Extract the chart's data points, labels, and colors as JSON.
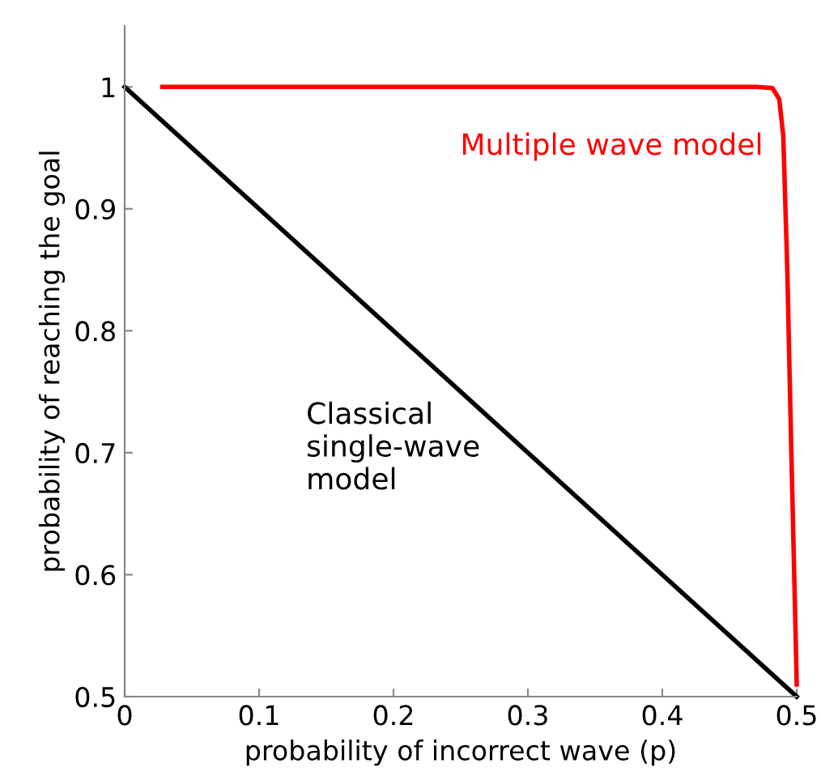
{
  "chart_data": {
    "type": "line",
    "xlabel": "probability of incorrect wave (p)",
    "ylabel": "probability of reaching the goal",
    "series": [
      {
        "name": "Multiple wave model",
        "color": "#ff0000",
        "x": [
          0.028,
          0.47,
          0.482,
          0.487,
          0.49,
          0.493,
          0.496,
          0.499,
          0.5
        ],
        "values": [
          1,
          1,
          0.999,
          0.99,
          0.96,
          0.85,
          0.7,
          0.56,
          0.51
        ]
      },
      {
        "name": "Classical\nsingle-wave\nmodel",
        "color": "#000000",
        "x": [
          0,
          0.5
        ],
        "values": [
          1,
          0.5
        ]
      }
    ],
    "xlim": [
      0,
      0.5
    ],
    "ylim": [
      0.5,
      1.05
    ],
    "xticks": [
      0,
      0.1,
      0.2,
      0.3,
      0.4,
      0.5
    ],
    "yticks": [
      0.5,
      0.6,
      0.7,
      0.8,
      0.9,
      1
    ],
    "grid": false,
    "legend": false,
    "marker": "none",
    "line_style": "solid"
  }
}
